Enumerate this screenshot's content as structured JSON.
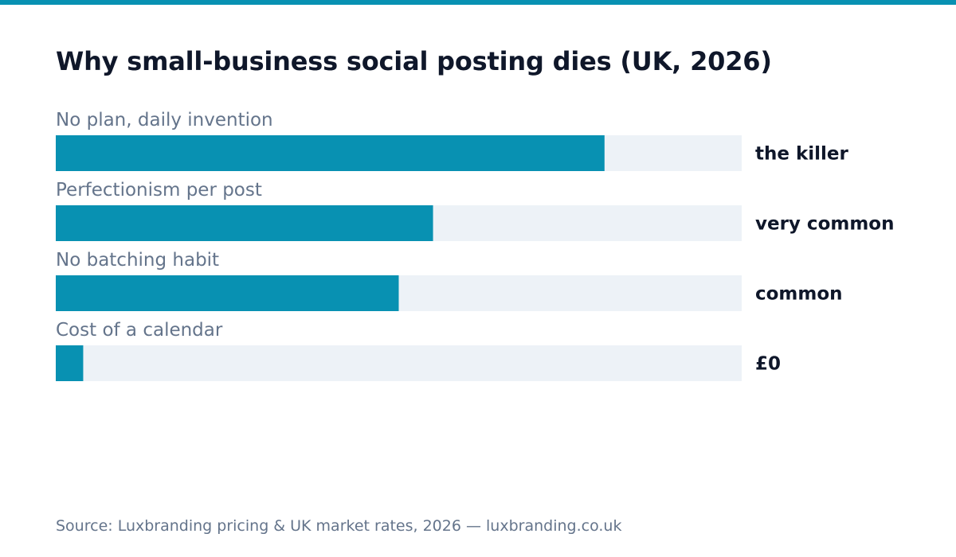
{
  "colors": {
    "accent": "#0891b2",
    "track": "#edf2f7",
    "title": "#0f172a",
    "muted": "#64748b"
  },
  "chart_data": {
    "type": "bar",
    "orientation": "horizontal",
    "title": "Why small-business social posting dies (UK, 2026)",
    "categories": [
      "No plan, daily invention",
      "Perfectionism per post",
      "No batching habit",
      "Cost of a calendar"
    ],
    "values": [
      0.8,
      0.55,
      0.5,
      0.04
    ],
    "value_labels": [
      "the killer",
      "very common",
      "common",
      "£0"
    ],
    "xlim": [
      0,
      1
    ],
    "grid": false,
    "legend": "none"
  },
  "footer": {
    "source": "Source: Luxbranding pricing & UK market rates, 2026 — luxbranding.co.uk"
  }
}
